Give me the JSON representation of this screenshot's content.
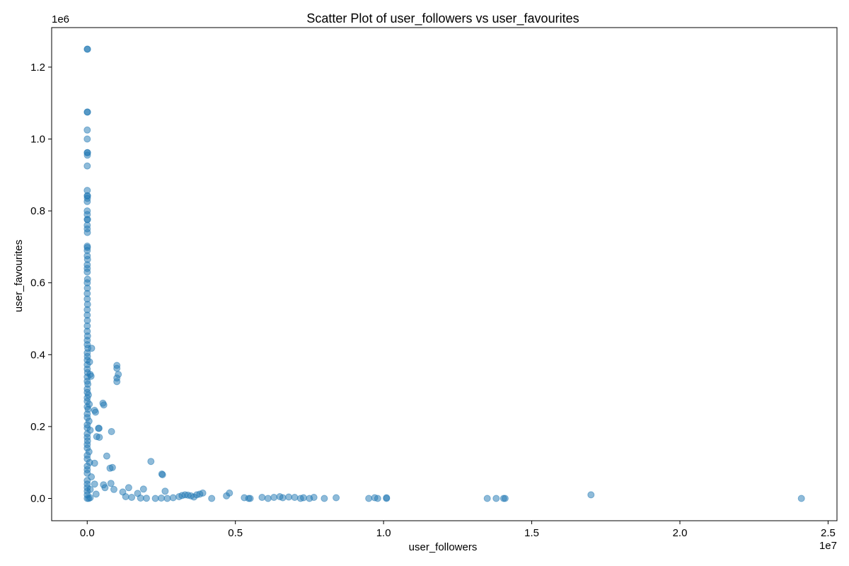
{
  "chart_data": {
    "type": "scatter",
    "title": "Scatter Plot of user_followers vs user_favourites",
    "xlabel": "user_followers",
    "ylabel": "user_favourites",
    "x_offset_label": "1e7",
    "y_offset_label": "1e6",
    "xlim": [
      -1200000,
      25300000
    ],
    "ylim": [
      -62000,
      1310000
    ],
    "x_ticks": [
      {
        "value": 0,
        "label": "0.0"
      },
      {
        "value": 5000000,
        "label": "0.5"
      },
      {
        "value": 10000000,
        "label": "1.0"
      },
      {
        "value": 15000000,
        "label": "1.5"
      },
      {
        "value": 20000000,
        "label": "2.0"
      },
      {
        "value": 25000000,
        "label": "2.5"
      }
    ],
    "y_ticks": [
      {
        "value": 0,
        "label": "0.0"
      },
      {
        "value": 200000,
        "label": "0.2"
      },
      {
        "value": 400000,
        "label": "0.4"
      },
      {
        "value": 600000,
        "label": "0.6"
      },
      {
        "value": 800000,
        "label": "0.8"
      },
      {
        "value": 1000000,
        "label": "1.0"
      },
      {
        "value": 1200000,
        "label": "1.2"
      }
    ],
    "grid": false,
    "legend": "none",
    "marker_color": "#1f77b4",
    "marker_alpha": 0.5,
    "points": [
      [
        0,
        1250000
      ],
      [
        10000,
        1250000
      ],
      [
        0,
        1075000
      ],
      [
        10000,
        1075000
      ],
      [
        0,
        1025000
      ],
      [
        0,
        1000000
      ],
      [
        0,
        962000
      ],
      [
        10000,
        962000
      ],
      [
        5000,
        955000
      ],
      [
        0,
        925000
      ],
      [
        0,
        857000
      ],
      [
        0,
        842000
      ],
      [
        10000,
        842000
      ],
      [
        5000,
        835000
      ],
      [
        0,
        826000
      ],
      [
        0,
        800000
      ],
      [
        0,
        790000
      ],
      [
        0,
        776000
      ],
      [
        10000,
        776000
      ],
      [
        0,
        760000
      ],
      [
        0,
        750000
      ],
      [
        5000,
        740000
      ],
      [
        0,
        702000
      ],
      [
        5000,
        698000
      ],
      [
        0,
        690000
      ],
      [
        0,
        675000
      ],
      [
        10000,
        665000
      ],
      [
        0,
        650000
      ],
      [
        0,
        640000
      ],
      [
        0,
        630000
      ],
      [
        10000,
        610000
      ],
      [
        0,
        600000
      ],
      [
        5000,
        585000
      ],
      [
        0,
        570000
      ],
      [
        0,
        555000
      ],
      [
        10000,
        540000
      ],
      [
        0,
        525000
      ],
      [
        0,
        510000
      ],
      [
        5000,
        495000
      ],
      [
        0,
        480000
      ],
      [
        0,
        465000
      ],
      [
        10000,
        452000
      ],
      [
        0,
        440000
      ],
      [
        0,
        428000
      ],
      [
        20000,
        418000
      ],
      [
        150000,
        418000
      ],
      [
        0,
        405000
      ],
      [
        5000,
        395000
      ],
      [
        0,
        385000
      ],
      [
        80000,
        380000
      ],
      [
        0,
        372000
      ],
      [
        0,
        360000
      ],
      [
        10000,
        350000
      ],
      [
        100000,
        345000
      ],
      [
        130000,
        340000
      ],
      [
        0,
        338000
      ],
      [
        0,
        326000
      ],
      [
        20000,
        318000
      ],
      [
        0,
        305000
      ],
      [
        0,
        295000
      ],
      [
        40000,
        288000
      ],
      [
        0,
        280000
      ],
      [
        0,
        270000
      ],
      [
        70000,
        262000
      ],
      [
        0,
        255000
      ],
      [
        30000,
        248000
      ],
      [
        250000,
        245000
      ],
      [
        280000,
        240000
      ],
      [
        0,
        235000
      ],
      [
        0,
        225000
      ],
      [
        60000,
        215000
      ],
      [
        0,
        205000
      ],
      [
        0,
        196000
      ],
      [
        100000,
        190000
      ],
      [
        380000,
        195000
      ],
      [
        820000,
        186000
      ],
      [
        0,
        180000
      ],
      [
        0,
        170000
      ],
      [
        320000,
        172000
      ],
      [
        10000,
        160000
      ],
      [
        0,
        150000
      ],
      [
        0,
        140000
      ],
      [
        60000,
        130000
      ],
      [
        0,
        120000
      ],
      [
        660000,
        118000
      ],
      [
        0,
        110000
      ],
      [
        80000,
        100000
      ],
      [
        250000,
        98000
      ],
      [
        0,
        90000
      ],
      [
        770000,
        84000
      ],
      [
        850000,
        86000
      ],
      [
        0,
        80000
      ],
      [
        0,
        70000
      ],
      [
        140000,
        60000
      ],
      [
        0,
        50000
      ],
      [
        0,
        40000
      ],
      [
        250000,
        40000
      ],
      [
        550000,
        38000
      ],
      [
        0,
        30000
      ],
      [
        0,
        20000
      ],
      [
        100000,
        25000
      ],
      [
        0,
        10000
      ],
      [
        0,
        0
      ],
      [
        50000,
        0
      ],
      [
        100000,
        2000
      ],
      [
        1000000,
        370000
      ],
      [
        1000000,
        362000
      ],
      [
        1000000,
        335000
      ],
      [
        1000000,
        325000
      ],
      [
        1050000,
        345000
      ],
      [
        530000,
        265000
      ],
      [
        560000,
        260000
      ],
      [
        400000,
        195000
      ],
      [
        410000,
        170000
      ],
      [
        2150000,
        103000
      ],
      [
        2520000,
        68000
      ],
      [
        2540000,
        66000
      ],
      [
        2630000,
        20000
      ],
      [
        1900000,
        26000
      ],
      [
        1400000,
        30000
      ],
      [
        1200000,
        18000
      ],
      [
        1700000,
        14000
      ],
      [
        600000,
        30000
      ],
      [
        800000,
        42000
      ],
      [
        900000,
        25000
      ],
      [
        300000,
        12000
      ],
      [
        1300000,
        5000
      ],
      [
        1500000,
        3000
      ],
      [
        1800000,
        1000
      ],
      [
        2000000,
        500
      ],
      [
        2300000,
        0
      ],
      [
        2500000,
        1000
      ],
      [
        2700000,
        0
      ],
      [
        2900000,
        2000
      ],
      [
        3100000,
        5000
      ],
      [
        3200000,
        8000
      ],
      [
        3300000,
        10000
      ],
      [
        3400000,
        9000
      ],
      [
        3500000,
        7000
      ],
      [
        3600000,
        4000
      ],
      [
        3700000,
        10000
      ],
      [
        3800000,
        12000
      ],
      [
        3900000,
        15000
      ],
      [
        4200000,
        0
      ],
      [
        4700000,
        7000
      ],
      [
        4800000,
        15000
      ],
      [
        5300000,
        2000
      ],
      [
        5450000,
        0
      ],
      [
        5500000,
        0
      ],
      [
        5900000,
        3000
      ],
      [
        6100000,
        0
      ],
      [
        6300000,
        3000
      ],
      [
        6500000,
        5000
      ],
      [
        6600000,
        2000
      ],
      [
        6800000,
        4000
      ],
      [
        7000000,
        3000
      ],
      [
        7200000,
        0
      ],
      [
        7300000,
        2000
      ],
      [
        7500000,
        0
      ],
      [
        7650000,
        3000
      ],
      [
        8000000,
        0
      ],
      [
        8400000,
        2000
      ],
      [
        9500000,
        0
      ],
      [
        9700000,
        2000
      ],
      [
        9800000,
        0
      ],
      [
        10100000,
        0
      ],
      [
        10100000,
        2000
      ],
      [
        13500000,
        0
      ],
      [
        13800000,
        0
      ],
      [
        14050000,
        0
      ],
      [
        14100000,
        0
      ],
      [
        17000000,
        10000
      ],
      [
        24100000,
        0
      ]
    ]
  }
}
